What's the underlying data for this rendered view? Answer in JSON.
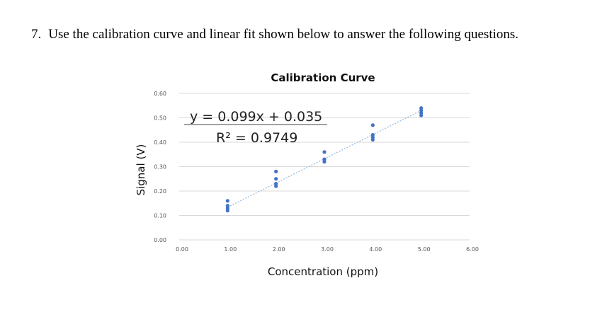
{
  "question": {
    "number": "7.",
    "text": "Use the calibration curve and linear fit shown below to answer the following questions."
  },
  "chart_data": {
    "type": "scatter",
    "title": "Calibration Curve",
    "xlabel": "Concentration (ppm)",
    "ylabel": "Signal (V)",
    "xlim": [
      0,
      6
    ],
    "ylim": [
      0,
      0.6
    ],
    "x_ticks": [
      "0.00",
      "1.00",
      "2.00",
      "3.00",
      "4.00",
      "5.00",
      "6.00"
    ],
    "y_ticks": [
      "0.00",
      "0.10",
      "0.20",
      "0.30",
      "0.40",
      "0.50",
      "0.60"
    ],
    "grid": "horizontal",
    "points": [
      {
        "x": 1,
        "y": 0.16
      },
      {
        "x": 1,
        "y": 0.14
      },
      {
        "x": 1,
        "y": 0.13
      },
      {
        "x": 1,
        "y": 0.12
      },
      {
        "x": 2,
        "y": 0.28
      },
      {
        "x": 2,
        "y": 0.25
      },
      {
        "x": 2,
        "y": 0.23
      },
      {
        "x": 2,
        "y": 0.22
      },
      {
        "x": 3,
        "y": 0.36
      },
      {
        "x": 3,
        "y": 0.33
      },
      {
        "x": 3,
        "y": 0.32
      },
      {
        "x": 4,
        "y": 0.47
      },
      {
        "x": 4,
        "y": 0.43
      },
      {
        "x": 4,
        "y": 0.42
      },
      {
        "x": 4,
        "y": 0.41
      },
      {
        "x": 5,
        "y": 0.54
      },
      {
        "x": 5,
        "y": 0.53
      },
      {
        "x": 5,
        "y": 0.52
      },
      {
        "x": 5,
        "y": 0.51
      }
    ],
    "trendline": {
      "slope": 0.099,
      "intercept": 0.035,
      "x_range": [
        1,
        5
      ],
      "equation": "y = 0.099x + 0.035",
      "r_squared": "R² = 0.9749"
    },
    "colors": {
      "points": "#4472c4",
      "trendline": "#9dc3e6",
      "grid": "#d9d9d9"
    }
  }
}
